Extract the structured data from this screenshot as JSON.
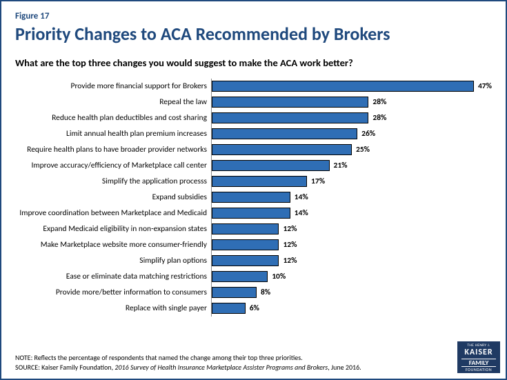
{
  "figure_label": "Figure 17",
  "title": "Priority Changes to ACA Recommended by Brokers",
  "subtitle": "What are the top three changes you would suggest to make the ACA work better?",
  "chart": {
    "type": "bar-horizontal",
    "bar_color": "#2f6eb5",
    "bar_border_color": "#000000",
    "axis_color": "#888888",
    "max_value": 50,
    "label_fontsize": 11.5,
    "value_fontsize": 11.5,
    "value_suffix": "%",
    "categories": [
      "Provide more financial support for Brokers",
      "Repeal the law",
      "Reduce health plan deductibles and cost sharing",
      "Limit annual health plan premium increases",
      "Require health plans to have broader provider networks",
      "Improve accuracy/efficiency of Marketplace call center",
      "Simplify the application processs",
      "Expand subsidies",
      "Improve coordination between Marketplace and Medicaid",
      "Expand Medicaid eligibility in non-expansion states",
      "Make Marketplace website more consumer-friendly",
      "Simplify plan options",
      "Ease or eliminate data matching restrictions",
      "Provide more/better information to consumers",
      "Replace with single payer"
    ],
    "values": [
      47,
      28,
      28,
      26,
      25,
      21,
      17,
      14,
      14,
      12,
      12,
      12,
      10,
      8,
      6
    ]
  },
  "note_label": "NOTE:",
  "note_text": "Reflects the percentage of respondents that named the change among their top three priorities.",
  "source_label": "SOURCE:",
  "source_prefix": "Kaiser Family Foundation, ",
  "source_italic": "2016 Survey of Health Insurance Marketplace Assister Programs and Brokers",
  "source_suffix": ", June 2016.",
  "logo": {
    "line1": "THE HENRY J.",
    "line2": "KAISER",
    "line3": "FAMILY",
    "line4": "FOUNDATION",
    "bg_color": "#1f3a63"
  }
}
